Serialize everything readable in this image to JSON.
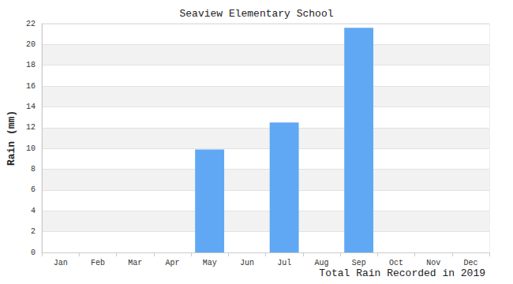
{
  "chart_data": {
    "type": "bar",
    "title": "Seaview Elementary School",
    "x_label": "Total Rain Recorded in 2019",
    "y_label": "Rain (mm)",
    "categories": [
      "Jan",
      "Feb",
      "Mar",
      "Apr",
      "May",
      "Jun",
      "Jul",
      "Aug",
      "Sep",
      "Oct",
      "Nov",
      "Dec"
    ],
    "values": [
      0,
      0,
      0,
      0,
      9.9,
      0,
      12.5,
      0,
      21.6,
      0,
      0,
      0
    ],
    "color": "#60a8f4",
    "ylim": [
      0,
      22
    ],
    "yticks": [
      0,
      2,
      4,
      6,
      8,
      10,
      12,
      14,
      16,
      18,
      20,
      22
    ],
    "grid": true
  }
}
